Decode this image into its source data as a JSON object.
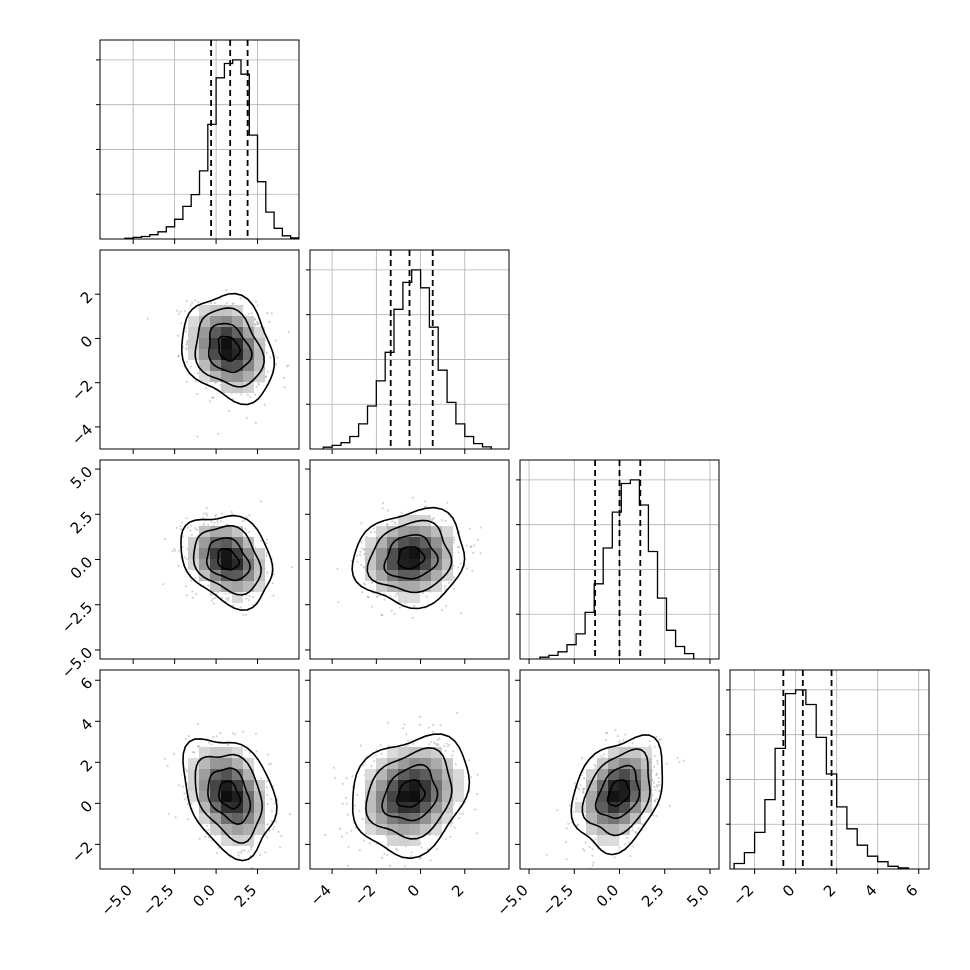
{
  "chart_data": {
    "type": "corner",
    "grid": true,
    "parameters": [
      {
        "range": [
          -7,
          5
        ],
        "ticks": [
          -5.0,
          -2.5,
          0.0,
          2.5
        ],
        "tick_labels": [
          "−5.0",
          "−2.5",
          "0.0",
          "2.5"
        ],
        "quantiles": [
          -0.3,
          0.85,
          1.9
        ],
        "hist": {
          "edges": [
            -5.5,
            -5.0,
            -4.5,
            -4.0,
            -3.5,
            -3.0,
            -2.5,
            -2.0,
            -1.5,
            -1.0,
            -0.5,
            0.0,
            0.5,
            1.0,
            1.5,
            2.0,
            2.5,
            3.0,
            3.5,
            4.0,
            4.5,
            5.0
          ],
          "counts": [
            0.004,
            0.009,
            0.014,
            0.024,
            0.04,
            0.068,
            0.11,
            0.182,
            0.248,
            0.38,
            0.64,
            0.9,
            0.98,
            1.0,
            0.92,
            0.58,
            0.32,
            0.15,
            0.06,
            0.018,
            0.006
          ]
        }
      },
      {
        "range": [
          -5,
          4
        ],
        "ticks": [
          -4,
          -2,
          0,
          2
        ],
        "tick_labels": [
          "−4",
          "−2",
          "0",
          "2"
        ],
        "quantiles": [
          -1.35,
          -0.5,
          0.55
        ],
        "hist": {
          "edges": [
            -4.4,
            -4.0,
            -3.6,
            -3.2,
            -2.8,
            -2.4,
            -2.0,
            -1.6,
            -1.2,
            -0.8,
            -0.4,
            0.0,
            0.4,
            0.8,
            1.2,
            1.6,
            2.0,
            2.4,
            2.8,
            3.2
          ],
          "counts": [
            0.01,
            0.02,
            0.035,
            0.07,
            0.14,
            0.24,
            0.38,
            0.54,
            0.78,
            0.93,
            1.0,
            0.9,
            0.68,
            0.44,
            0.26,
            0.14,
            0.07,
            0.03,
            0.012
          ]
        }
      },
      {
        "range": [
          -5.5,
          5.5
        ],
        "ticks": [
          -5.0,
          -2.5,
          0.0,
          2.5,
          5.0
        ],
        "tick_labels": [
          "−5.0",
          "−2.5",
          "0.0",
          "2.5",
          "5.0"
        ],
        "quantiles": [
          -1.35,
          0.0,
          1.15
        ],
        "hist": {
          "edges": [
            -4.4,
            -3.9,
            -3.4,
            -2.9,
            -2.4,
            -1.9,
            -1.4,
            -0.9,
            -0.4,
            0.1,
            0.6,
            1.1,
            1.6,
            2.1,
            2.6,
            3.1,
            3.6,
            4.1
          ],
          "counts": [
            0.01,
            0.02,
            0.04,
            0.08,
            0.14,
            0.26,
            0.42,
            0.62,
            0.82,
            0.98,
            1.0,
            0.86,
            0.6,
            0.34,
            0.16,
            0.07,
            0.03
          ]
        }
      },
      {
        "range": [
          -3.2,
          6.5
        ],
        "ticks": [
          -2,
          0,
          2,
          4,
          6
        ],
        "tick_labels": [
          "−2",
          "0",
          "2",
          "4",
          "6"
        ],
        "quantiles": [
          -0.6,
          0.35,
          1.75
        ],
        "hist": {
          "edges": [
            -3.0,
            -2.5,
            -2.0,
            -1.5,
            -1.0,
            -0.5,
            0.0,
            0.5,
            1.0,
            1.5,
            2.0,
            2.5,
            3.0,
            3.5,
            4.0,
            4.5,
            5.0,
            5.5
          ],
          "counts": [
            0.03,
            0.09,
            0.2,
            0.38,
            0.66,
            0.96,
            0.98,
            0.9,
            0.72,
            0.52,
            0.34,
            0.22,
            0.13,
            0.07,
            0.04,
            0.015,
            0.006
          ]
        }
      }
    ],
    "pairs": [
      {
        "row": 1,
        "col": 0,
        "cx": 0.75,
        "cy": -0.45,
        "sx": 1.15,
        "sy": 1.0,
        "rho": -0.2
      },
      {
        "row": 2,
        "col": 0,
        "cx": 0.7,
        "cy": 0.0,
        "sx": 1.15,
        "sy": 1.05,
        "rho": -0.25
      },
      {
        "row": 2,
        "col": 1,
        "cx": -0.45,
        "cy": 0.1,
        "sx": 1.05,
        "sy": 1.1,
        "rho": 0.1
      },
      {
        "row": 3,
        "col": 0,
        "cx": 0.8,
        "cy": 0.4,
        "sx": 1.15,
        "sy": 1.2,
        "rho": -0.3
      },
      {
        "row": 3,
        "col": 1,
        "cx": -0.45,
        "cy": 0.45,
        "sx": 1.1,
        "sy": 1.2,
        "rho": 0.2
      },
      {
        "row": 3,
        "col": 2,
        "cx": -0.05,
        "cy": 0.5,
        "sx": 1.05,
        "sy": 1.15,
        "rho": 0.3
      }
    ]
  }
}
